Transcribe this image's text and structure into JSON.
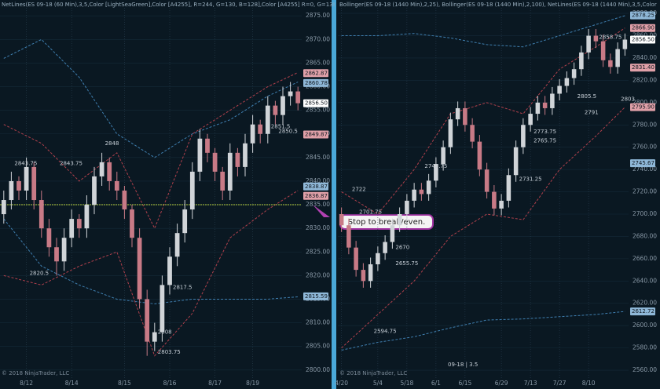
{
  "chart_data": [
    {
      "type": "candlestick",
      "header": "NetLines(ES 09-18 (60 Min),3,5,Color [LightSeaGreen],Color [A4255], R=244, G=130, B=128],Color [A4255] R=0, G=13!",
      "footer": "© 2018 NinjaTrader, LLC",
      "up_color": "#d0d4d8",
      "down_color": "#c87a86",
      "categories": [
        null,
        null,
        null,
        "8/12",
        null,
        null,
        null,
        null,
        null,
        "8/14",
        null,
        null,
        null,
        null,
        null,
        null,
        "8/15",
        null,
        null,
        null,
        null,
        null,
        "8/16",
        null,
        null,
        null,
        null,
        null,
        "8/17",
        null,
        null,
        null,
        null,
        "8/19",
        null,
        null,
        null,
        null,
        null,
        null
      ],
      "open": [
        2833,
        2836,
        2840,
        2838,
        2843,
        2836,
        2830,
        2826,
        2823,
        2828,
        2832,
        2830,
        2835,
        2841,
        2844,
        2840,
        2838,
        2834,
        2828,
        2815,
        2806,
        2808,
        2818,
        2824,
        2829,
        2834,
        2842,
        2849,
        2846,
        2842,
        2838,
        2846,
        2843,
        2848,
        2852,
        2850,
        2856,
        2854,
        2858,
        2859
      ],
      "high": [
        2838,
        2842,
        2841,
        2845,
        2844,
        2838,
        2832,
        2828,
        2830,
        2834,
        2833,
        2837,
        2843,
        2846,
        2845,
        2842,
        2839,
        2835,
        2830,
        2817,
        2810,
        2820,
        2826,
        2831,
        2836,
        2844,
        2851,
        2850,
        2847,
        2843,
        2848,
        2847,
        2850,
        2854,
        2853,
        2858,
        2857,
        2860,
        2861,
        2860
      ],
      "low": [
        2831,
        2834,
        2836,
        2836,
        2834,
        2828,
        2824,
        2820,
        2821,
        2826,
        2828,
        2828,
        2833,
        2839,
        2838,
        2836,
        2832,
        2826,
        2813,
        2803,
        2804,
        2806,
        2816,
        2822,
        2827,
        2832,
        2840,
        2844,
        2840,
        2836,
        2836,
        2841,
        2841,
        2846,
        2848,
        2848,
        2852,
        2852,
        2856,
        2855
      ],
      "close": [
        2836,
        2840,
        2838,
        2843,
        2836,
        2830,
        2826,
        2823,
        2828,
        2832,
        2830,
        2835,
        2841,
        2844,
        2840,
        2838,
        2834,
        2828,
        2815,
        2806,
        2808,
        2818,
        2824,
        2829,
        2834,
        2842,
        2849,
        2846,
        2842,
        2838,
        2846,
        2843,
        2848,
        2852,
        2850,
        2856,
        2854,
        2858,
        2859,
        2856.5
      ],
      "bands": [
        {
          "color": "#3f7fb0",
          "x": [
            0,
            5,
            10,
            15,
            20,
            25,
            30,
            35,
            39
          ],
          "values": [
            2866,
            2870,
            2862,
            2850,
            2845,
            2850,
            2853,
            2858,
            2861
          ]
        },
        {
          "color": "#3f7fb0",
          "x": [
            0,
            5,
            10,
            15,
            20,
            25,
            30,
            35,
            39
          ],
          "values": [
            2832,
            2822,
            2818,
            2815,
            2814,
            2815,
            2815,
            2815,
            2815.5
          ]
        },
        {
          "color": "#b0404c",
          "x": [
            0,
            5,
            10,
            15,
            20,
            25,
            30,
            35,
            39
          ],
          "values": [
            2852,
            2848,
            2840,
            2846,
            2830,
            2850,
            2855,
            2860,
            2863
          ]
        },
        {
          "color": "#b0404c",
          "x": [
            0,
            5,
            10,
            15,
            20,
            25,
            30,
            35,
            39
          ],
          "values": [
            2820,
            2818,
            2822,
            2825,
            2803,
            2812,
            2828,
            2834,
            2838
          ]
        }
      ],
      "ylim": [
        2798.3,
        2876.7
      ],
      "yticks": [
        {
          "value": 2800,
          "label": "2800.00"
        },
        {
          "value": 2805,
          "label": "2805.00"
        },
        {
          "value": 2810,
          "label": "2810.00"
        },
        {
          "value": 2815,
          "label": "2815.00"
        },
        {
          "value": 2820,
          "label": "2820.00"
        },
        {
          "value": 2825,
          "label": "2825.00"
        },
        {
          "value": 2830,
          "label": "2830.00"
        },
        {
          "value": 2835,
          "label": "2835.00"
        },
        {
          "value": 2840,
          "label": "2840.00"
        },
        {
          "value": 2845,
          "label": "2845.00"
        },
        {
          "value": 2850,
          "label": "2850.00"
        },
        {
          "value": 2855,
          "label": "2855.00"
        },
        {
          "value": 2860,
          "label": "2860.00"
        },
        {
          "value": 2865,
          "label": "2865.00"
        },
        {
          "value": 2870,
          "label": "2870.00"
        },
        {
          "value": 2875,
          "label": "2875.00"
        }
      ],
      "price_markers": [
        {
          "value": 2862.87,
          "color": "#e0a0a8"
        },
        {
          "value": 2860.78,
          "color": "#8fb8d8"
        },
        {
          "value": 2856.5,
          "label": "2856.50",
          "color": "#ffffff"
        },
        {
          "value": 2849.87,
          "color": "#e0a0a8"
        },
        {
          "value": 2838.87,
          "color": "#8fb8d8"
        },
        {
          "value": 2836.87,
          "color": "#e0a0a8"
        },
        {
          "value": 2815.59,
          "color": "#8fb8d8"
        }
      ],
      "annotations": [
        {
          "index": 35,
          "value": 2851.5
        },
        {
          "index": 36,
          "value": 2850.5
        },
        {
          "index": 13,
          "value": 2848
        },
        {
          "index": 1,
          "value": 2843.75
        },
        {
          "index": 7,
          "value": 2843.75
        },
        {
          "index": 22,
          "value": 2817.5
        },
        {
          "index": 20,
          "value": 2808
        },
        {
          "index": 20,
          "value": 2803.75
        },
        {
          "index": 3,
          "value": 2820.5
        }
      ],
      "hline": {
        "value": 2835,
        "color": "#b8d040"
      },
      "callout": "Stop to break/even."
    },
    {
      "type": "candlestick",
      "header": "Bollinger(ES 09-18 (1440 Min),2,25), Bollinger(ES 09-18 (1440 Min),2,100), NetLines(ES 09-18 (1440 Min),3,5,Color",
      "footer": "© 2018 NinjaTrader, LLC",
      "instrument": "09-18 | 3.5",
      "up_color": "#d0d4d8",
      "down_color": "#c87a86",
      "categories": [
        "4/20",
        null,
        null,
        null,
        null,
        "5/4",
        null,
        null,
        null,
        "5/18",
        null,
        null,
        null,
        "6/1",
        null,
        null,
        null,
        "6/15",
        null,
        null,
        null,
        null,
        "6/29",
        null,
        null,
        null,
        "7/13",
        null,
        null,
        null,
        "7/27",
        null,
        null,
        null,
        "8/10",
        null,
        null,
        null,
        null,
        null
      ],
      "open": [
        2700,
        2690,
        2670,
        2650,
        2640,
        2655,
        2665,
        2675,
        2690,
        2700,
        2712,
        2722,
        2718,
        2730,
        2745,
        2760,
        2785,
        2795,
        2780,
        2765,
        2740,
        2720,
        2705,
        2712,
        2735,
        2760,
        2780,
        2790,
        2800,
        2795,
        2808,
        2815,
        2822,
        2830,
        2845,
        2860,
        2855,
        2838,
        2832,
        2848
      ],
      "high": [
        2706,
        2696,
        2676,
        2656,
        2661,
        2671,
        2681,
        2696,
        2706,
        2718,
        2728,
        2728,
        2736,
        2751,
        2766,
        2791,
        2801,
        2801,
        2786,
        2771,
        2746,
        2726,
        2718,
        2741,
        2766,
        2786,
        2796,
        2806,
        2806,
        2814,
        2821,
        2828,
        2836,
        2851,
        2866,
        2866,
        2861,
        2844,
        2854,
        2862
      ],
      "low": [
        2684,
        2664,
        2644,
        2634,
        2634,
        2649,
        2659,
        2669,
        2684,
        2694,
        2706,
        2712,
        2712,
        2724,
        2739,
        2754,
        2779,
        2774,
        2759,
        2734,
        2714,
        2699,
        2699,
        2706,
        2729,
        2754,
        2774,
        2784,
        2789,
        2789,
        2802,
        2809,
        2816,
        2824,
        2839,
        2849,
        2832,
        2826,
        2826,
        2842
      ],
      "close": [
        2690,
        2670,
        2650,
        2640,
        2655,
        2665,
        2675,
        2690,
        2700,
        2712,
        2722,
        2718,
        2730,
        2745,
        2760,
        2785,
        2795,
        2780,
        2765,
        2740,
        2720,
        2705,
        2712,
        2735,
        2760,
        2780,
        2790,
        2800,
        2795,
        2808,
        2815,
        2822,
        2830,
        2845,
        2860,
        2855,
        2838,
        2832,
        2848,
        2856.5
      ],
      "bands": [
        {
          "color": "#3f7fb0",
          "x": [
            0,
            5,
            10,
            15,
            20,
            25,
            30,
            35,
            39
          ],
          "values": [
            2860,
            2860,
            2862,
            2858,
            2852,
            2850,
            2860,
            2870,
            2878
          ]
        },
        {
          "color": "#3f7fb0",
          "x": [
            0,
            5,
            10,
            15,
            20,
            25,
            30,
            35,
            39
          ],
          "values": [
            2578,
            2585,
            2590,
            2598,
            2605,
            2606,
            2608,
            2610,
            2612.7
          ]
        },
        {
          "color": "#b0404c",
          "x": [
            0,
            5,
            10,
            15,
            20,
            25,
            30,
            35,
            39
          ],
          "values": [
            2720,
            2700,
            2740,
            2790,
            2800,
            2790,
            2830,
            2850,
            2866.9
          ]
        },
        {
          "color": "#b0404c",
          "x": [
            0,
            5,
            10,
            15,
            20,
            25,
            30,
            35,
            39
          ],
          "values": [
            2580,
            2610,
            2640,
            2680,
            2700,
            2695,
            2740,
            2770,
            2795.9
          ]
        }
      ],
      "ylim": [
        2553,
        2885
      ],
      "yticks": [
        {
          "value": 2560,
          "label": "2560.00"
        },
        {
          "value": 2580,
          "label": "2580.00"
        },
        {
          "value": 2600,
          "label": "2600.00"
        },
        {
          "value": 2620,
          "label": "2620.00"
        },
        {
          "value": 2640,
          "label": "2640.00"
        },
        {
          "value": 2660,
          "label": "2660.00"
        },
        {
          "value": 2680,
          "label": "2680.00"
        },
        {
          "value": 2700,
          "label": "2700.00"
        },
        {
          "value": 2720,
          "label": "2720.00"
        },
        {
          "value": 2740,
          "label": "2740.00"
        },
        {
          "value": 2760,
          "label": "2760.00"
        },
        {
          "value": 2780,
          "label": "2780.00"
        },
        {
          "value": 2800,
          "label": "2800.00"
        },
        {
          "value": 2820,
          "label": "2820.00"
        },
        {
          "value": 2840,
          "label": "2840.00"
        },
        {
          "value": 2860,
          "label": "2860.00"
        },
        {
          "value": 2880,
          "label": "2880.00"
        }
      ],
      "price_markers": [
        {
          "value": 2878.25,
          "color": "#8fb8d8"
        },
        {
          "value": 2866.9,
          "label": "2866.90",
          "color": "#e0a0a8"
        },
        {
          "value": 2856.5,
          "label": "2856.50",
          "color": "#ffffff"
        },
        {
          "value": 2831.4,
          "label": "2831.40",
          "color": "#e0a0a8"
        },
        {
          "value": 2795.9,
          "label": "2795.90",
          "color": "#e0a0a8"
        },
        {
          "value": 2745.67,
          "color": "#8fb8d8"
        },
        {
          "value": 2612.72,
          "color": "#8fb8d8"
        }
      ],
      "annotations": [
        {
          "index": 35,
          "value": 2858.75
        },
        {
          "index": 32,
          "value": 2805.5
        },
        {
          "index": 38,
          "value": 2803
        },
        {
          "index": 33,
          "value": 2791
        },
        {
          "index": 26,
          "value": 2773.75
        },
        {
          "index": 26,
          "value": 2765.75
        },
        {
          "index": 11,
          "value": 2742.75
        },
        {
          "index": 24,
          "value": 2731.25
        },
        {
          "index": 2,
          "value": 2701.75
        },
        {
          "index": 7,
          "value": 2670
        },
        {
          "index": 7,
          "value": 2655.75
        },
        {
          "index": 4,
          "value": 2594.75
        },
        {
          "index": 1,
          "value": 2722
        }
      ]
    }
  ]
}
